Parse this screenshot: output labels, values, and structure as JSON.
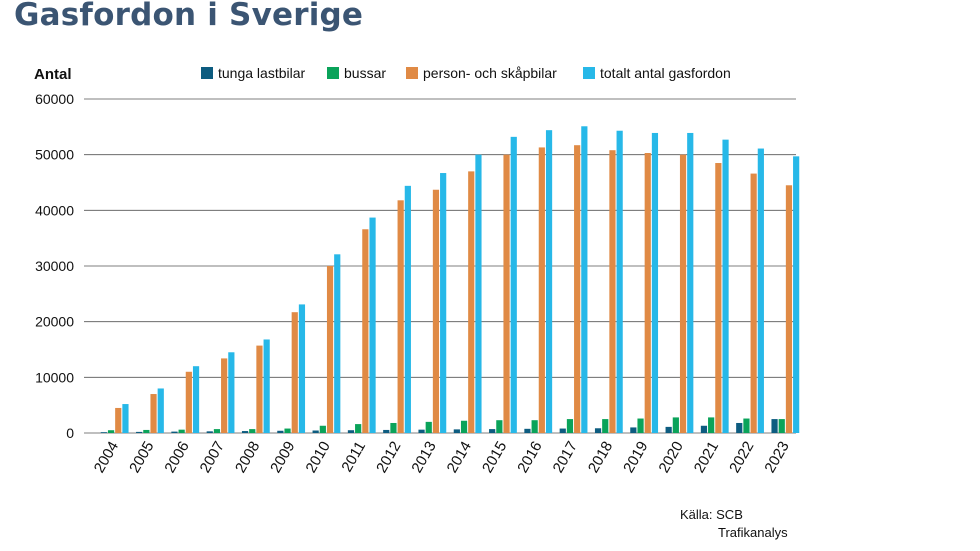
{
  "page": {
    "title": "Gasfordon i Sverige"
  },
  "chart_data": {
    "type": "bar",
    "title": "",
    "ylabel": "Antal",
    "xlabel": "",
    "ylim": [
      0,
      60000
    ],
    "yticks": [
      0,
      10000,
      20000,
      30000,
      40000,
      50000,
      60000
    ],
    "grid": true,
    "legend_position": "top",
    "categories": [
      "2004",
      "2005",
      "2006",
      "2007",
      "2008",
      "2009",
      "2010",
      "2011",
      "2012",
      "2013",
      "2014",
      "2015",
      "2016",
      "2017",
      "2018",
      "2019",
      "2020",
      "2021",
      "2022",
      "2023"
    ],
    "series": [
      {
        "name": "tunga lastbilar",
        "color": "#0d5c80",
        "values": [
          150,
          200,
          250,
          300,
          350,
          400,
          450,
          500,
          550,
          600,
          650,
          700,
          750,
          800,
          850,
          1000,
          1100,
          1300,
          1800,
          2500
        ]
      },
      {
        "name": "bussar",
        "color": "#0aa35a",
        "values": [
          500,
          550,
          600,
          700,
          700,
          800,
          1300,
          1600,
          1800,
          2000,
          2200,
          2300,
          2300,
          2500,
          2500,
          2600,
          2800,
          2800,
          2600,
          2500
        ]
      },
      {
        "name": "person- och skåpbilar",
        "color": "#e08a45",
        "values": [
          4500,
          7000,
          11000,
          13400,
          15700,
          21700,
          30000,
          36600,
          41800,
          43700,
          47000,
          50000,
          51300,
          51700,
          50800,
          50300,
          50000,
          48500,
          46600,
          44500
        ]
      },
      {
        "name": "totalt antal gasfordon",
        "color": "#27b8e8",
        "values": [
          5200,
          8000,
          12000,
          14500,
          16800,
          23100,
          32100,
          38700,
          44400,
          46700,
          50000,
          53200,
          54400,
          55100,
          54300,
          53900,
          53900,
          52700,
          51100,
          49700
        ]
      }
    ]
  },
  "source": {
    "line1": "Källa: SCB",
    "line2": "Trafikanalys"
  }
}
